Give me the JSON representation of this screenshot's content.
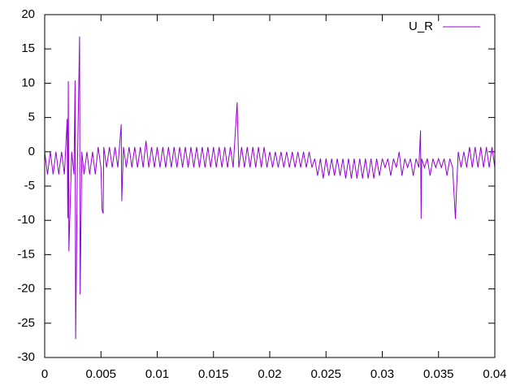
{
  "chart_data": {
    "type": "line",
    "x": [
      0,
      0.00025,
      0.0005,
      0.00075,
      0.001,
      0.00125,
      0.0015,
      0.00175,
      0.002,
      0.00205,
      0.0021,
      0.00215,
      0.0024,
      0.0026,
      0.0027,
      0.00275,
      0.0029,
      0.0031,
      0.00315,
      0.0033,
      0.0035,
      0.00375,
      0.004,
      0.00425,
      0.0045,
      0.00475,
      0.005,
      0.0051,
      0.0052,
      0.00525,
      0.0055,
      0.00575,
      0.006,
      0.00625,
      0.0065,
      0.0068,
      0.00685,
      0.007,
      0.00725,
      0.0075,
      0.00775,
      0.008,
      0.00825,
      0.0085,
      0.00875,
      0.009,
      0.00925,
      0.0095,
      0.00975,
      0.01,
      0.01025,
      0.0105,
      0.01075,
      0.011,
      0.01125,
      0.0115,
      0.01175,
      0.012,
      0.01225,
      0.0125,
      0.01275,
      0.013,
      0.01325,
      0.0135,
      0.01375,
      0.014,
      0.01425,
      0.0145,
      0.01475,
      0.015,
      0.01525,
      0.0155,
      0.01575,
      0.016,
      0.01625,
      0.0165,
      0.01675,
      0.0171,
      0.01725,
      0.0175,
      0.01775,
      0.018,
      0.01825,
      0.0185,
      0.01875,
      0.019,
      0.01925,
      0.0195,
      0.01975,
      0.02,
      0.02025,
      0.0205,
      0.02075,
      0.021,
      0.02125,
      0.0215,
      0.02175,
      0.022,
      0.02225,
      0.0225,
      0.02275,
      0.023,
      0.02325,
      0.0235,
      0.02375,
      0.024,
      0.02425,
      0.0245,
      0.02475,
      0.025,
      0.02525,
      0.0255,
      0.02575,
      0.026,
      0.02625,
      0.0265,
      0.02675,
      0.027,
      0.02725,
      0.0275,
      0.02775,
      0.028,
      0.02825,
      0.0285,
      0.02875,
      0.029,
      0.02925,
      0.0295,
      0.02975,
      0.03,
      0.03025,
      0.0305,
      0.03075,
      0.031,
      0.03125,
      0.0315,
      0.03175,
      0.032,
      0.03225,
      0.0325,
      0.03275,
      0.033,
      0.03325,
      0.0334,
      0.03345,
      0.0335,
      0.03375,
      0.034,
      0.03425,
      0.0345,
      0.03475,
      0.035,
      0.03525,
      0.0355,
      0.03575,
      0.036,
      0.03625,
      0.0365,
      0.0366,
      0.03675,
      0.037,
      0.03725,
      0.0375,
      0.03775,
      0.038,
      0.03825,
      0.0385,
      0.03875,
      0.039,
      0.03925,
      0.0395,
      0.03975,
      0.04
    ],
    "series": [
      {
        "name": "U_R",
        "color": "#9400d3",
        "values": [
          0,
          -3.3,
          0,
          -3.3,
          0,
          -3.3,
          0,
          -3.3,
          4.8,
          -9.7,
          10.3,
          -14.5,
          0,
          -3.3,
          10.4,
          -27.3,
          -3,
          16.8,
          -20.8,
          0,
          -3.3,
          0,
          -3.3,
          0,
          -3.3,
          0.7,
          -2.3,
          -8.5,
          -9,
          0.7,
          -2.3,
          0.7,
          -2.3,
          0.7,
          -2.3,
          4,
          -7.2,
          0.7,
          -2.3,
          0.7,
          -2.3,
          0.7,
          -2.3,
          0.7,
          -2.3,
          1.6,
          -2.3,
          0.7,
          -2.3,
          0.7,
          -2.3,
          0.7,
          -2.3,
          0.7,
          -2.3,
          0.7,
          -2.3,
          0.7,
          -2.3,
          0.7,
          -2.3,
          0.7,
          -2.3,
          0.7,
          -2.3,
          0.7,
          -2.3,
          0.7,
          -2.3,
          0.7,
          -2.3,
          0.7,
          -2.3,
          0.7,
          -2.3,
          0.7,
          -2.3,
          7.2,
          -2.3,
          0.7,
          -2.3,
          0.7,
          -2.3,
          0.7,
          -2.3,
          0.7,
          -2.3,
          0.7,
          -2.3,
          0,
          -2.3,
          0,
          -2.3,
          0,
          -2.3,
          0,
          -2.3,
          0,
          -2.3,
          0,
          -2.3,
          0,
          -2.3,
          0,
          -2.3,
          -1,
          -3.5,
          -1,
          -3.9,
          -1,
          -3.5,
          -1,
          -3.5,
          -1,
          -3.5,
          -1,
          -3.9,
          -1,
          -3.9,
          -1,
          -3.9,
          -1,
          -3.9,
          -1,
          -3.9,
          -1,
          -3.9,
          -1,
          -3.5,
          -1,
          -2.3,
          -1,
          -3.5,
          -1,
          -2.3,
          0,
          -3.5,
          -1,
          -2.3,
          -1,
          -3.5,
          -1,
          -2.3,
          3.1,
          -9.8,
          -1,
          -2.3,
          -1,
          -3.5,
          -1,
          -2.3,
          -1,
          -2.3,
          -1,
          -3.5,
          -1,
          -2.3,
          -9.8,
          -5.5,
          0,
          -2.3,
          0,
          -2.3,
          0.7,
          -2.3,
          0.7,
          -2.3,
          0.7,
          -2.3,
          0.7,
          -2.3,
          0.7,
          -2.3
        ]
      }
    ],
    "xlim": [
      0,
      0.04
    ],
    "xticks": [
      0,
      0.005,
      0.01,
      0.015,
      0.02,
      0.025,
      0.03,
      0.035,
      0.04
    ],
    "ylim": [
      -30,
      20
    ],
    "yticks": [
      -30,
      -25,
      -20,
      -15,
      -10,
      -5,
      0,
      5,
      10,
      15,
      20
    ],
    "legend": "top-right"
  }
}
